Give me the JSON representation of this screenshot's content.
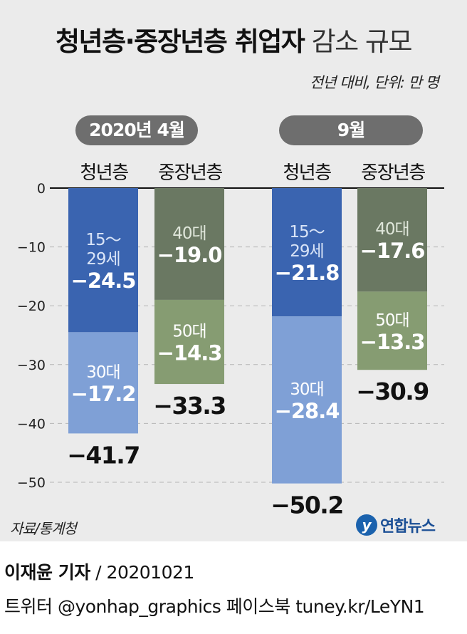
{
  "title_bold": "청년층·중장년층 취업자",
  "title_normal": "감소 규모",
  "unit_note": "전년 대비, 단위: 만 명",
  "source": "자료/통계청",
  "logo_text": "연합뉴스",
  "logo_mark": "y",
  "credit": {
    "reporter": "이재윤 기자",
    "date": "/ 20201021",
    "social": "트위터 @yonhap_graphics  페이스북 tuney.kr/LeYN1"
  },
  "chart_data": {
    "type": "bar",
    "stacked": true,
    "ylim": [
      -50,
      0
    ],
    "yticks": [
      0,
      -10,
      -20,
      -30,
      -40,
      -50
    ],
    "ytick_labels": [
      "0",
      "−10",
      "−20",
      "−30",
      "−40",
      "−50"
    ],
    "groups": [
      {
        "label": "2020년 4월",
        "bars": [
          {
            "category": "청년층",
            "total": -41.7,
            "total_label": "−41.7",
            "segments": [
              {
                "name": "15～29세",
                "label_lines": [
                  "15～",
                  "29세"
                ],
                "value": -24.5,
                "value_label": "−24.5",
                "color": "#3a64b0"
              },
              {
                "name": "30대",
                "label_lines": [
                  "30대"
                ],
                "value": -17.2,
                "value_label": "−17.2",
                "color": "#7fa0d6"
              }
            ]
          },
          {
            "category": "중장년층",
            "total": -33.3,
            "total_label": "−33.3",
            "segments": [
              {
                "name": "40대",
                "label_lines": [
                  "40대"
                ],
                "value": -19.0,
                "value_label": "−19.0",
                "color": "#6a7862"
              },
              {
                "name": "50대",
                "label_lines": [
                  "50대"
                ],
                "value": -14.3,
                "value_label": "−14.3",
                "color": "#869c72"
              }
            ]
          }
        ]
      },
      {
        "label": "9월",
        "bars": [
          {
            "category": "청년층",
            "total": -50.2,
            "total_label": "−50.2",
            "segments": [
              {
                "name": "15～29세",
                "label_lines": [
                  "15～",
                  "29세"
                ],
                "value": -21.8,
                "value_label": "−21.8",
                "color": "#3a64b0"
              },
              {
                "name": "30대",
                "label_lines": [
                  "30대"
                ],
                "value": -28.4,
                "value_label": "−28.4",
                "color": "#7fa0d6"
              }
            ]
          },
          {
            "category": "중장년층",
            "total": -30.9,
            "total_label": "−30.9",
            "segments": [
              {
                "name": "40대",
                "label_lines": [
                  "40대"
                ],
                "value": -17.6,
                "value_label": "−17.6",
                "color": "#6a7862"
              },
              {
                "name": "50대",
                "label_lines": [
                  "50대"
                ],
                "value": -13.3,
                "value_label": "−13.3",
                "color": "#869c72"
              }
            ]
          }
        ]
      }
    ]
  }
}
